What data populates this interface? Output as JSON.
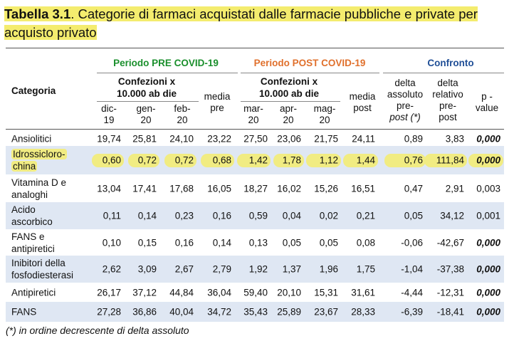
{
  "title": {
    "label": "Tabella 3.1",
    "text": ". Categorie di farmaci acquistati dalle farmacie pubbliche e private per acquisto privato"
  },
  "header": {
    "period_pre": "Periodo PRE COVID-19",
    "period_post": "Periodo POST COVID-19",
    "comparison": "Confronto",
    "categoria": "Categoria",
    "conf_pre_1": "Confezioni x",
    "conf_pre_2": "10.000 ab die",
    "conf_post_1": "Confezioni x",
    "conf_post_2": "10.000 ab die",
    "col_dic_1": "dic-",
    "col_dic_2": "19",
    "col_gen_1": "gen-",
    "col_gen_2": "20",
    "col_feb_1": "feb-",
    "col_feb_2": "20",
    "col_mediapre_1": "media",
    "col_mediapre_2": "pre",
    "col_mar_1": "mar-",
    "col_mar_2": "20",
    "col_apr_1": "apr-",
    "col_apr_2": "20",
    "col_mag_1": "mag-",
    "col_mag_2": "20",
    "col_mediapost_1": "media",
    "col_mediapost_2": "post",
    "col_delta_abs_1": "delta",
    "col_delta_abs_2": "assoluto",
    "col_delta_abs_3": "pre-",
    "col_delta_abs_4": "post (*)",
    "col_delta_rel_1": "delta",
    "col_delta_rel_2": "relativo",
    "col_delta_rel_3": "pre-",
    "col_delta_rel_4": "post",
    "col_pvalue_1": "p -",
    "col_pvalue_2": "value"
  },
  "rows": [
    {
      "cat1": "Ansiolitici",
      "cat2": "",
      "v": [
        "19,74",
        "25,81",
        "24,10",
        "23,22",
        "27,50",
        "23,06",
        "21,75",
        "24,11",
        "0,89",
        "3,83",
        "0,000"
      ],
      "p_bold": true,
      "highlight": false,
      "stripe": false
    },
    {
      "cat1": "Idrossicloro-",
      "cat2": "china",
      "v": [
        "0,60",
        "0,72",
        "0,72",
        "0,68",
        "1,42",
        "1,78",
        "1,12",
        "1,44",
        "0,76",
        "111,84",
        "0,000"
      ],
      "p_bold": true,
      "highlight": true,
      "stripe": true
    },
    {
      "cat1": "Vitamina D e",
      "cat2": "analoghi",
      "v": [
        "13,04",
        "17,41",
        "17,68",
        "16,05",
        "18,27",
        "16,02",
        "15,26",
        "16,51",
        "0,47",
        "2,91",
        "0,003"
      ],
      "p_bold": false,
      "highlight": false,
      "stripe": false
    },
    {
      "cat1": "Acido",
      "cat2": "ascorbico",
      "v": [
        "0,11",
        "0,14",
        "0,23",
        "0,16",
        "0,59",
        "0,04",
        "0,02",
        "0,21",
        "0,05",
        "34,12",
        "0,001"
      ],
      "p_bold": false,
      "highlight": false,
      "stripe": true
    },
    {
      "cat1": "FANS e",
      "cat2": "antipiretici",
      "v": [
        "0,10",
        "0,15",
        "0,16",
        "0,14",
        "0,13",
        "0,05",
        "0,05",
        "0,08",
        "-0,06",
        "-42,67",
        "0,000"
      ],
      "p_bold": true,
      "highlight": false,
      "stripe": false
    },
    {
      "cat1": "Inibitori della",
      "cat2": "fosfodiesterasi",
      "v": [
        "2,62",
        "3,09",
        "2,67",
        "2,79",
        "1,92",
        "1,37",
        "1,96",
        "1,75",
        "-1,04",
        "-37,38",
        "0,000"
      ],
      "p_bold": true,
      "highlight": false,
      "stripe": true
    },
    {
      "cat1": "Antipiretici",
      "cat2": "",
      "v": [
        "26,17",
        "37,12",
        "44,84",
        "36,04",
        "59,40",
        "20,10",
        "15,31",
        "31,61",
        "-4,44",
        "-12,31",
        "0,000"
      ],
      "p_bold": true,
      "highlight": false,
      "stripe": false
    },
    {
      "cat1": "FANS",
      "cat2": "",
      "v": [
        "27,28",
        "36,86",
        "40,04",
        "34,72",
        "35,43",
        "25,89",
        "23,67",
        "28,33",
        "-6,39",
        "-18,41",
        "0,000"
      ],
      "p_bold": true,
      "highlight": false,
      "stripe": true
    }
  ],
  "footnote": "(*) in ordine decrescente di delta assoluto"
}
